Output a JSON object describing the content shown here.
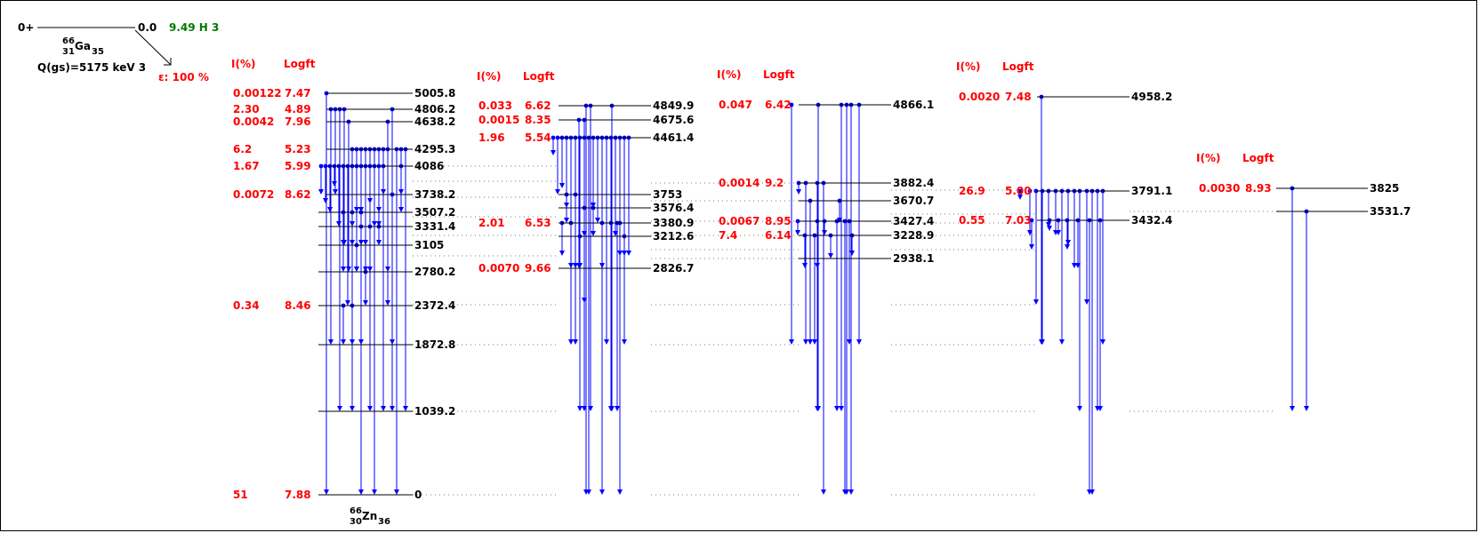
{
  "parent": {
    "spin": "0+",
    "energy": "0.0",
    "halflife": "9.49 H 3",
    "nucleus": {
      "A": "66",
      "Z": "31",
      "sym": "Ga",
      "N": "35"
    },
    "qvalue": "Q(gs)=5175 keV 3",
    "decay": "ε: 100 %"
  },
  "daughter": {
    "A": "66",
    "Z": "30",
    "sym": "Zn",
    "N": "36"
  },
  "header": {
    "i": "I(%)",
    "logft": "Logft"
  },
  "levels": [
    {
      "e": "5005.8",
      "i": "0.00122",
      "logft": "7.47"
    },
    {
      "e": "4806.2",
      "i": "2.30",
      "logft": "4.89"
    },
    {
      "e": "4638.2",
      "i": "0.0042",
      "logft": "7.96"
    },
    {
      "e": "4295.3",
      "i": "6.2",
      "logft": "5.23"
    },
    {
      "e": "4086",
      "i": "1.67",
      "logft": "5.99"
    },
    {
      "e": "3738.2",
      "i": "0.0072",
      "logft": "8.62"
    },
    {
      "e": "3507.2",
      "i": "",
      "logft": ""
    },
    {
      "e": "3331.4",
      "i": "",
      "logft": ""
    },
    {
      "e": "3105",
      "i": "",
      "logft": ""
    },
    {
      "e": "2780.2",
      "i": "",
      "logft": ""
    },
    {
      "e": "2372.4",
      "i": "0.34",
      "logft": "8.46"
    },
    {
      "e": "1872.8",
      "i": "",
      "logft": ""
    },
    {
      "e": "1039.2",
      "i": "",
      "logft": ""
    },
    {
      "e": "0",
      "i": "51",
      "logft": "7.88"
    },
    {
      "e": "4849.9",
      "i": "0.033",
      "logft": "6.62"
    },
    {
      "e": "4675.6",
      "i": "0.0015",
      "logft": "8.35"
    },
    {
      "e": "4461.4",
      "i": "1.96",
      "logft": "5.54"
    },
    {
      "e": "3753",
      "i": "",
      "logft": ""
    },
    {
      "e": "3576.4",
      "i": "",
      "logft": ""
    },
    {
      "e": "3380.9",
      "i": "2.01",
      "logft": "6.53"
    },
    {
      "e": "3212.6",
      "i": "",
      "logft": ""
    },
    {
      "e": "2826.7",
      "i": "0.0070",
      "logft": "9.66"
    },
    {
      "e": "4866.1",
      "i": "0.047",
      "logft": "6.42"
    },
    {
      "e": "3882.4",
      "i": "0.0014",
      "logft": "9.2"
    },
    {
      "e": "3670.7",
      "i": "",
      "logft": ""
    },
    {
      "e": "3427.4",
      "i": "0.0067",
      "logft": "8.95"
    },
    {
      "e": "3228.9",
      "i": "7.4",
      "logft": "6.14"
    },
    {
      "e": "2938.1",
      "i": "",
      "logft": ""
    },
    {
      "e": "4958.2",
      "i": "0.0020",
      "logft": "7.48"
    },
    {
      "e": "3791.1",
      "i": "26.9",
      "logft": "5.00"
    },
    {
      "e": "3432.4",
      "i": "0.55",
      "logft": "7.03"
    },
    {
      "e": "3825",
      "i": "0.0030",
      "logft": "8.93"
    },
    {
      "e": "3531.7",
      "i": "",
      "logft": ""
    }
  ],
  "colors": {
    "intensity": "#ff0000",
    "gamma": "#0000ff",
    "halflife": "#007a00",
    "level": "#000000"
  }
}
